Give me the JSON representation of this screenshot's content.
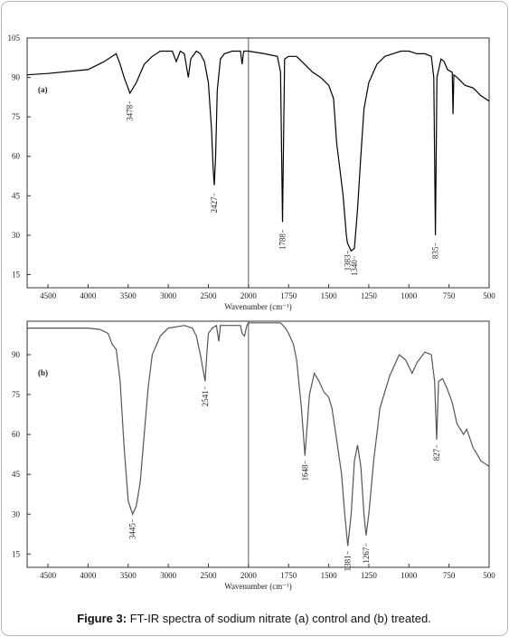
{
  "chart_data": [
    {
      "type": "line",
      "panel_label": "(a)",
      "xlabel": "Wavenumber (cm⁻¹)",
      "xlim": [
        4760,
        500
      ],
      "x_scale_break": 2000,
      "xticks": [
        4500,
        4000,
        3500,
        3000,
        2500,
        2000,
        1750,
        1500,
        1250,
        1000,
        750,
        500
      ],
      "ylim": [
        10,
        105
      ],
      "yticks": [
        15,
        30,
        45,
        60,
        75,
        90,
        105
      ],
      "series": [
        {
          "color": "#000000",
          "x": [
            4760,
            4500,
            4000,
            3800,
            3700,
            3650,
            3600,
            3550,
            3478,
            3400,
            3300,
            3200,
            3100,
            3000,
            2950,
            2900,
            2850,
            2800,
            2750,
            2720,
            2650,
            2600,
            2550,
            2500,
            2460,
            2440,
            2427,
            2410,
            2390,
            2350,
            2300,
            2200,
            2100,
            2080,
            2060,
            2000,
            1900,
            1820,
            1800,
            1788,
            1775,
            1750,
            1700,
            1650,
            1600,
            1550,
            1500,
            1470,
            1450,
            1430,
            1410,
            1390,
            1383,
            1360,
            1340,
            1320,
            1300,
            1280,
            1250,
            1200,
            1150,
            1100,
            1050,
            1000,
            950,
            900,
            860,
            845,
            835,
            825,
            800,
            780,
            760,
            730,
            725,
            720,
            700,
            650,
            600,
            550,
            500
          ],
          "values": [
            91,
            91.5,
            93,
            96,
            98,
            99,
            95,
            90,
            84,
            88,
            95,
            98,
            100,
            100,
            100,
            96,
            100,
            99,
            90,
            97,
            100,
            99,
            96,
            88,
            70,
            55,
            49,
            60,
            85,
            97,
            99,
            100,
            100,
            95,
            100,
            100,
            99,
            98,
            92,
            35,
            97,
            98,
            98,
            95,
            92,
            90,
            87,
            82,
            65,
            55,
            45,
            30,
            27,
            24,
            25,
            40,
            60,
            78,
            88,
            95,
            98,
            99,
            100,
            100,
            99,
            99,
            98,
            90,
            30,
            90,
            97,
            96,
            93,
            92,
            76,
            91,
            90,
            87,
            86,
            83,
            81
          ]
        }
      ],
      "annotations": [
        {
          "text": "3478",
          "x": 3478,
          "y": 81
        },
        {
          "text": "2427",
          "x": 2427,
          "y": 46
        },
        {
          "text": "1788",
          "x": 1788,
          "y": 32
        },
        {
          "text": "1383",
          "x": 1383,
          "y": 24
        },
        {
          "text": "1340",
          "x": 1340,
          "y": 22
        },
        {
          "text": "835",
          "x": 835,
          "y": 27
        }
      ]
    },
    {
      "type": "line",
      "panel_label": "(b)",
      "xlabel": "Wavenumber (cm⁻¹)",
      "xlim": [
        4760,
        500
      ],
      "x_scale_break": 2000,
      "xticks": [
        4500,
        4000,
        3500,
        3000,
        2500,
        2000,
        1750,
        1500,
        1250,
        1000,
        750,
        500
      ],
      "ylim": [
        10,
        102.6
      ],
      "yticks": [
        15,
        30,
        45,
        60,
        75,
        90
      ],
      "series": [
        {
          "color": "#555555",
          "x": [
            4760,
            4000,
            3850,
            3750,
            3700,
            3650,
            3600,
            3550,
            3500,
            3445,
            3400,
            3350,
            3300,
            3250,
            3200,
            3100,
            3000,
            2800,
            2700,
            2650,
            2600,
            2541,
            2520,
            2500,
            2450,
            2400,
            2370,
            2350,
            2300,
            2100,
            2080,
            2050,
            2020,
            2000,
            1800,
            1770,
            1750,
            1720,
            1700,
            1670,
            1648,
            1620,
            1590,
            1560,
            1530,
            1500,
            1480,
            1450,
            1420,
            1400,
            1381,
            1360,
            1340,
            1320,
            1300,
            1280,
            1267,
            1250,
            1220,
            1180,
            1120,
            1060,
            1020,
            980,
            950,
            900,
            860,
            840,
            827,
            815,
            790,
            760,
            730,
            700,
            680,
            660,
            640,
            600,
            550,
            500
          ],
          "values": [
            100,
            100,
            99.5,
            98,
            94,
            92,
            80,
            55,
            35,
            30,
            33,
            42,
            60,
            78,
            90,
            97,
            100,
            101,
            100,
            97,
            90,
            80,
            90,
            98,
            100,
            101,
            95,
            101,
            101,
            101,
            98,
            97,
            101,
            102,
            102,
            100,
            98,
            94,
            88,
            70,
            52,
            75,
            83,
            80,
            76,
            74,
            70,
            58,
            45,
            30,
            18,
            30,
            50,
            56,
            48,
            30,
            22,
            30,
            50,
            70,
            82,
            90,
            88,
            83,
            87,
            91,
            90,
            80,
            58,
            80,
            81,
            77,
            72,
            64,
            62,
            60,
            62,
            55,
            50,
            48
          ]
        }
      ],
      "annotations": [
        {
          "text": "3445",
          "x": 3445,
          "y": 28
        },
        {
          "text": "2541",
          "x": 2541,
          "y": 78
        },
        {
          "text": "1648",
          "x": 1648,
          "y": 50
        },
        {
          "text": "1381",
          "x": 1381,
          "y": 16
        },
        {
          "text": "1267",
          "x": 1267,
          "y": 19
        },
        {
          "text": "827",
          "x": 827,
          "y": 56
        }
      ]
    }
  ],
  "caption": {
    "label": "Figure 3:",
    "text": " FT-IR spectra of sodium nitrate (a) control and (b) treated."
  }
}
